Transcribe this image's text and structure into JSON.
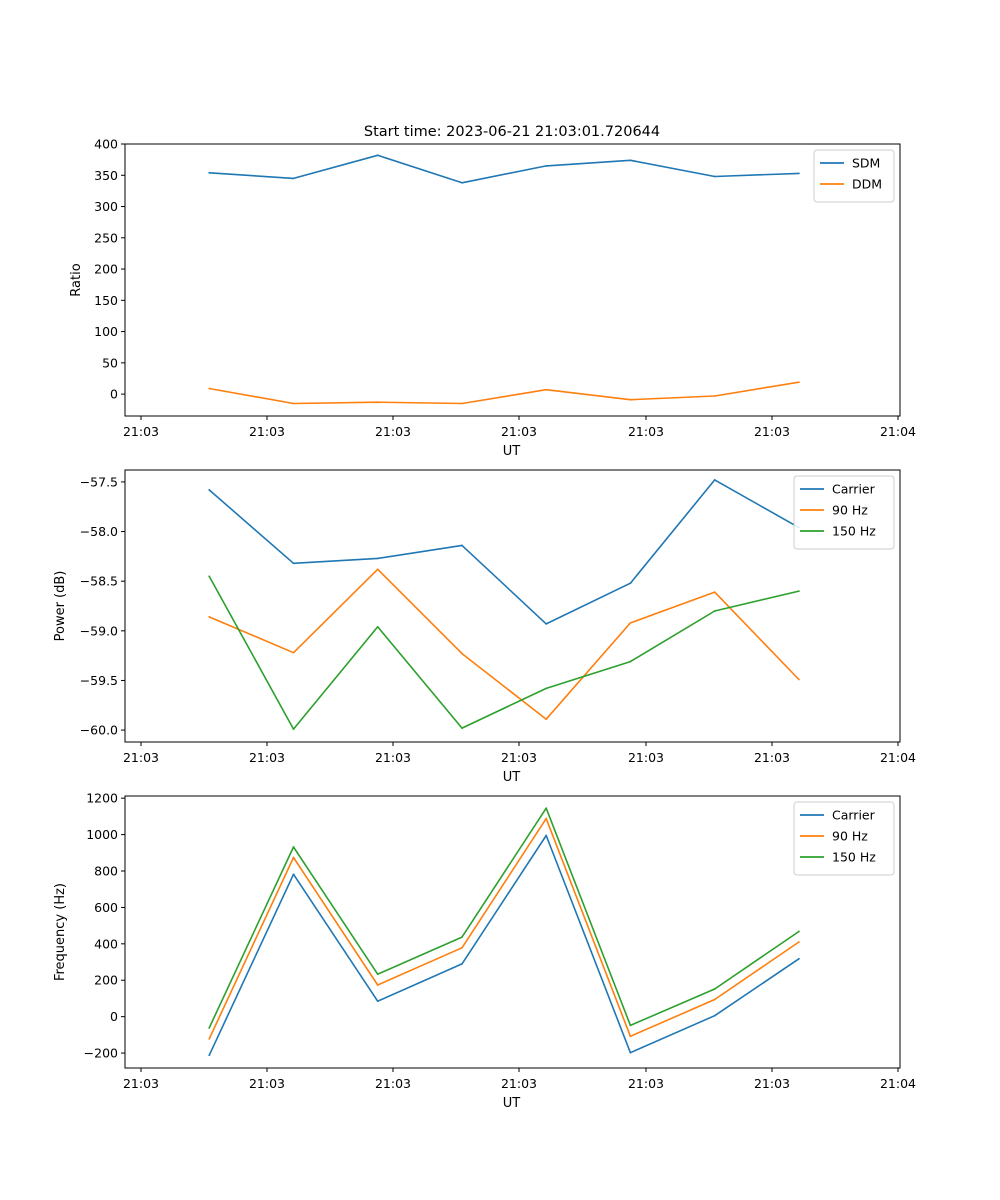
{
  "figure_title": "Start time: 2023-06-21 21:03:01.720644",
  "chart_data": [
    {
      "type": "line",
      "title": "Start time: 2023-06-21 21:03:01.720644",
      "xlabel": "UT",
      "ylabel": "Ratio",
      "x_ticks": [
        "21:03",
        "21:03",
        "21:03",
        "21:03",
        "21:03",
        "21:03",
        "21:04"
      ],
      "x": [
        1,
        2,
        3,
        4,
        5,
        6,
        7,
        8
      ],
      "xlim": [
        0,
        9.2
      ],
      "ylim": [
        -35,
        400
      ],
      "y_ticks": [
        0,
        50,
        100,
        150,
        200,
        250,
        300,
        350,
        400
      ],
      "legend": "upper right",
      "series": [
        {
          "name": "SDM",
          "color": "#1f77b4",
          "values": [
            354,
            345,
            382,
            338,
            365,
            374,
            348,
            353
          ]
        },
        {
          "name": "DDM",
          "color": "#ff7f0e",
          "values": [
            9,
            -15,
            -13,
            -15,
            7,
            -9,
            -3,
            19
          ]
        }
      ]
    },
    {
      "type": "line",
      "title": "",
      "xlabel": "UT",
      "ylabel": "Power (dB)",
      "x_ticks": [
        "21:03",
        "21:03",
        "21:03",
        "21:03",
        "21:03",
        "21:03",
        "21:04"
      ],
      "x": [
        1,
        2,
        3,
        4,
        5,
        6,
        7,
        8
      ],
      "xlim": [
        0,
        9.2
      ],
      "ylim": [
        -60.12,
        -57.38
      ],
      "y_ticks": [
        -60.0,
        -59.5,
        -59.0,
        -58.5,
        -58.0,
        -57.5
      ],
      "y_tick_labels": [
        "−60.0",
        "−59.5",
        "−59.0",
        "−58.5",
        "−58.0",
        "−57.5"
      ],
      "legend": "upper right",
      "series": [
        {
          "name": "Carrier",
          "color": "#1f77b4",
          "values": [
            -57.58,
            -58.32,
            -58.27,
            -58.14,
            -58.93,
            -58.52,
            -57.48,
            -57.96
          ]
        },
        {
          "name": "90 Hz",
          "color": "#ff7f0e",
          "values": [
            -58.86,
            -59.22,
            -58.38,
            -59.23,
            -59.89,
            -58.92,
            -58.61,
            -59.49
          ]
        },
        {
          "name": "150 Hz",
          "color": "#2ca02c",
          "values": [
            -58.45,
            -59.99,
            -58.96,
            -59.98,
            -59.58,
            -59.31,
            -58.8,
            -58.6
          ]
        }
      ]
    },
    {
      "type": "line",
      "title": "",
      "xlabel": "UT",
      "ylabel": "Frequency (Hz)",
      "x_ticks": [
        "21:03",
        "21:03",
        "21:03",
        "21:03",
        "21:03",
        "21:03",
        "21:04"
      ],
      "x": [
        1,
        2,
        3,
        4,
        5,
        6,
        7,
        8
      ],
      "xlim": [
        0,
        9.2
      ],
      "ylim": [
        -282,
        1212
      ],
      "y_ticks": [
        -200,
        0,
        200,
        400,
        600,
        800,
        1000,
        1200
      ],
      "y_tick_labels": [
        "−200",
        "0",
        "200",
        "400",
        "600",
        "800",
        "1000",
        "1200"
      ],
      "legend": "upper right",
      "series": [
        {
          "name": "Carrier",
          "color": "#1f77b4",
          "values": [
            -212,
            782,
            85,
            290,
            995,
            -198,
            5,
            318
          ]
        },
        {
          "name": "90 Hz",
          "color": "#ff7f0e",
          "values": [
            -122,
            874,
            174,
            378,
            1088,
            -108,
            94,
            410
          ]
        },
        {
          "name": "150 Hz",
          "color": "#2ca02c",
          "values": [
            -62,
            932,
            233,
            437,
            1145,
            -48,
            152,
            468
          ]
        }
      ]
    }
  ]
}
